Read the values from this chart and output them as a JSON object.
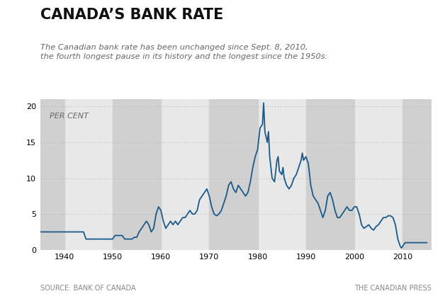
{
  "title": "CANADA’S BANK RATE",
  "subtitle_line1": "The Canadian bank rate has been unchanged since Sept. 8, 2010,",
  "subtitle_line2": "the fourth longest pause in its history and the longest since the 1950s:",
  "ylabel": "PER CENT",
  "source_left": "SOURCE: BANK OF CANADA",
  "source_right": "THE CANADIAN PRESS",
  "line_color": "#1a5a8a",
  "background_color": "#ffffff",
  "plot_bg_color": "#e8e8e8",
  "band_color": "#d0d0d0",
  "ylim": [
    0,
    21
  ],
  "yticks": [
    0,
    5,
    10,
    15,
    20
  ],
  "xlim": [
    1935,
    2016
  ],
  "xticks": [
    1940,
    1950,
    1960,
    1970,
    1980,
    1990,
    2000,
    2010
  ],
  "data": [
    [
      1935.0,
      2.5
    ],
    [
      1944.0,
      2.5
    ],
    [
      1944.5,
      1.5
    ],
    [
      1950.0,
      1.5
    ],
    [
      1950.5,
      2.0
    ],
    [
      1952.0,
      2.0
    ],
    [
      1952.5,
      1.5
    ],
    [
      1954.0,
      1.5
    ],
    [
      1954.5,
      1.75
    ],
    [
      1955.0,
      1.75
    ],
    [
      1955.5,
      2.5
    ],
    [
      1956.0,
      3.0
    ],
    [
      1957.0,
      4.0
    ],
    [
      1957.5,
      3.5
    ],
    [
      1958.0,
      2.5
    ],
    [
      1958.5,
      3.0
    ],
    [
      1959.0,
      5.0
    ],
    [
      1959.5,
      6.0
    ],
    [
      1960.0,
      5.5
    ],
    [
      1960.5,
      4.0
    ],
    [
      1961.0,
      3.0
    ],
    [
      1961.5,
      3.5
    ],
    [
      1962.0,
      4.0
    ],
    [
      1962.5,
      3.5
    ],
    [
      1963.0,
      4.0
    ],
    [
      1963.5,
      3.5
    ],
    [
      1964.0,
      4.0
    ],
    [
      1964.5,
      4.5
    ],
    [
      1965.0,
      4.5
    ],
    [
      1965.5,
      5.0
    ],
    [
      1966.0,
      5.5
    ],
    [
      1966.5,
      5.0
    ],
    [
      1967.0,
      5.0
    ],
    [
      1967.5,
      5.5
    ],
    [
      1968.0,
      7.0
    ],
    [
      1968.5,
      7.5
    ],
    [
      1969.0,
      8.0
    ],
    [
      1969.5,
      8.5
    ],
    [
      1970.0,
      7.5
    ],
    [
      1970.5,
      6.0
    ],
    [
      1971.0,
      5.0
    ],
    [
      1971.5,
      4.75
    ],
    [
      1972.0,
      5.0
    ],
    [
      1972.5,
      5.5
    ],
    [
      1973.0,
      6.5
    ],
    [
      1973.5,
      7.5
    ],
    [
      1974.0,
      9.0
    ],
    [
      1974.5,
      9.5
    ],
    [
      1975.0,
      8.5
    ],
    [
      1975.5,
      8.0
    ],
    [
      1976.0,
      9.0
    ],
    [
      1976.5,
      8.5
    ],
    [
      1977.0,
      8.0
    ],
    [
      1977.5,
      7.5
    ],
    [
      1978.0,
      8.0
    ],
    [
      1978.5,
      9.5
    ],
    [
      1979.0,
      11.5
    ],
    [
      1979.5,
      13.0
    ],
    [
      1980.0,
      14.0
    ],
    [
      1980.5,
      17.0
    ],
    [
      1981.0,
      17.5
    ],
    [
      1981.25,
      20.5
    ],
    [
      1981.5,
      16.5
    ],
    [
      1982.0,
      15.0
    ],
    [
      1982.25,
      16.5
    ],
    [
      1982.5,
      13.0
    ],
    [
      1983.0,
      10.0
    ],
    [
      1983.5,
      9.5
    ],
    [
      1984.0,
      12.5
    ],
    [
      1984.25,
      13.0
    ],
    [
      1984.5,
      11.0
    ],
    [
      1985.0,
      10.5
    ],
    [
      1985.25,
      11.5
    ],
    [
      1985.5,
      10.0
    ],
    [
      1986.0,
      9.0
    ],
    [
      1986.5,
      8.5
    ],
    [
      1987.0,
      9.0
    ],
    [
      1987.5,
      10.0
    ],
    [
      1988.0,
      10.5
    ],
    [
      1988.5,
      11.5
    ],
    [
      1989.0,
      12.5
    ],
    [
      1989.25,
      13.5
    ],
    [
      1989.5,
      12.5
    ],
    [
      1990.0,
      13.0
    ],
    [
      1990.5,
      12.0
    ],
    [
      1991.0,
      9.0
    ],
    [
      1991.5,
      7.5
    ],
    [
      1992.0,
      7.0
    ],
    [
      1992.5,
      6.5
    ],
    [
      1993.0,
      5.5
    ],
    [
      1993.5,
      4.5
    ],
    [
      1994.0,
      5.5
    ],
    [
      1994.5,
      7.5
    ],
    [
      1995.0,
      8.0
    ],
    [
      1995.5,
      7.0
    ],
    [
      1996.0,
      5.5
    ],
    [
      1996.5,
      4.5
    ],
    [
      1997.0,
      4.5
    ],
    [
      1997.5,
      5.0
    ],
    [
      1998.0,
      5.5
    ],
    [
      1998.5,
      6.0
    ],
    [
      1999.0,
      5.5
    ],
    [
      1999.5,
      5.5
    ],
    [
      2000.0,
      6.0
    ],
    [
      2000.5,
      6.0
    ],
    [
      2001.0,
      5.0
    ],
    [
      2001.5,
      3.5
    ],
    [
      2002.0,
      3.0
    ],
    [
      2002.5,
      3.25
    ],
    [
      2003.0,
      3.5
    ],
    [
      2003.5,
      3.0
    ],
    [
      2004.0,
      2.75
    ],
    [
      2004.5,
      3.25
    ],
    [
      2005.0,
      3.5
    ],
    [
      2005.5,
      4.0
    ],
    [
      2006.0,
      4.5
    ],
    [
      2006.5,
      4.5
    ],
    [
      2007.0,
      4.75
    ],
    [
      2007.5,
      4.75
    ],
    [
      2008.0,
      4.5
    ],
    [
      2008.5,
      3.5
    ],
    [
      2009.0,
      1.5
    ],
    [
      2009.5,
      0.5
    ],
    [
      2009.75,
      0.25
    ],
    [
      2010.0,
      0.5
    ],
    [
      2010.5,
      1.0
    ],
    [
      2011.0,
      1.0
    ],
    [
      2012.0,
      1.0
    ],
    [
      2013.0,
      1.0
    ],
    [
      2014.0,
      1.0
    ],
    [
      2015.0,
      1.0
    ]
  ]
}
